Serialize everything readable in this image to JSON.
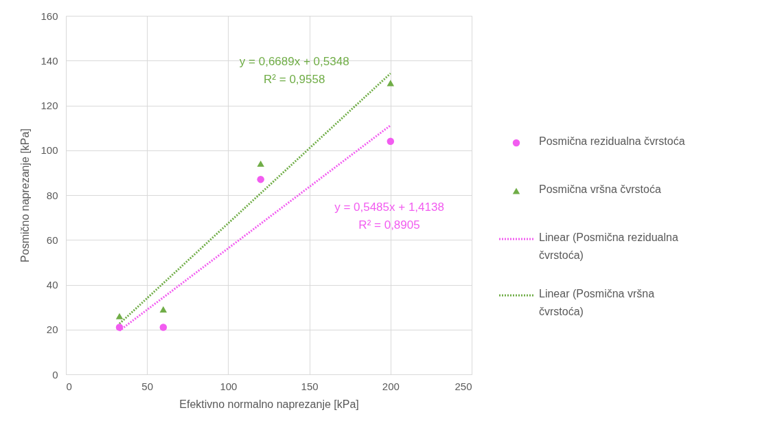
{
  "chart_data": {
    "type": "scatter",
    "xlabel": "Efektivno normalno naprezanje [kPa]",
    "ylabel": "Posmično naprezanje [kPa]",
    "xlim": [
      0,
      250
    ],
    "xticks": [
      0,
      50,
      100,
      150,
      200,
      250
    ],
    "ylim": [
      0,
      160
    ],
    "yticks": [
      0,
      20,
      40,
      60,
      80,
      100,
      120,
      140,
      160
    ],
    "grid": true,
    "legend": "right",
    "series": [
      {
        "name": "Posmična rezidualna čvrstoća",
        "type": "scatter",
        "marker": "circle",
        "color": "#f25cf0",
        "x": [
          33,
          60,
          120,
          200
        ],
        "values": [
          21,
          21,
          87,
          104
        ]
      },
      {
        "name": "Posmična vršna čvrstoća",
        "type": "scatter",
        "marker": "triangle",
        "color": "#70ad47",
        "x": [
          33,
          60,
          120,
          200
        ],
        "values": [
          26,
          29,
          94,
          130
        ]
      },
      {
        "name": "Linear (Posmična rezidualna čvrstoća)",
        "type": "line",
        "line_style": "dotted",
        "color": "#f25cf0",
        "x": [
          33,
          200
        ],
        "values": [
          19.5,
          111.1
        ]
      },
      {
        "name": "Linear (Posmična vršna čvrstoća)",
        "type": "line",
        "line_style": "dotted",
        "color": "#70ad47",
        "x": [
          33,
          200
        ],
        "values": [
          22.6,
          134.3
        ]
      }
    ],
    "annotations": [
      "y = 0,5485x + 1,4138\nR² = 0,8905",
      "y = 0,6689x + 0,5348\nR² = 0,9558"
    ]
  }
}
